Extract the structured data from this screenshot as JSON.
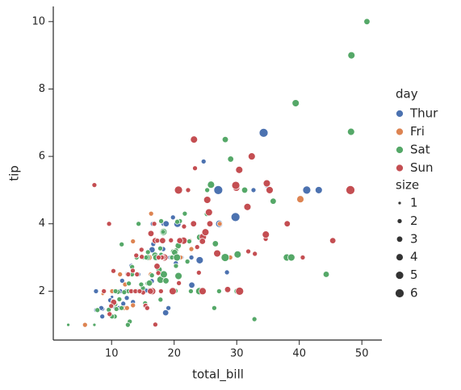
{
  "chart_data": {
    "type": "scatter",
    "x_label": "total_bill",
    "y_label": "tip",
    "legend_title": "day",
    "xlim": [
      0.68,
      53.2
    ],
    "ylim": [
      0.55,
      10.45
    ],
    "xticks": [
      10,
      20,
      30,
      40,
      50
    ],
    "yticks": [
      2,
      4,
      6,
      8,
      10
    ],
    "legend_position": "right",
    "series": [
      {
        "name": "Thur",
        "color": "#4c72b0",
        "x": [
          27.2,
          22.76,
          17.29,
          19.44,
          16.66,
          10.07,
          32.68,
          15.98,
          34.83,
          13.03,
          18.28,
          24.71,
          21.16,
          10.65,
          12.43,
          24.08,
          11.69,
          13.42,
          14.26,
          15.95,
          12.48,
          29.8,
          8.52,
          14.52,
          11.38,
          22.82,
          19.08,
          20.27,
          11.17,
          12.26,
          18.26,
          8.51,
          10.33,
          14.15,
          16.0,
          13.16,
          17.47,
          34.3,
          41.19,
          27.05,
          16.43,
          8.35,
          18.64,
          11.87,
          9.78,
          7.51,
          19.81,
          28.44,
          15.48,
          16.58,
          7.56,
          10.34,
          43.11,
          13.0,
          13.51,
          18.71,
          12.74,
          13.0,
          16.4,
          20.53,
          16.47,
          18.78
        ],
        "values": [
          4,
          3,
          2.71,
          3,
          3.4,
          1.83,
          5,
          2.03,
          5.17,
          2,
          4,
          5.85,
          3,
          1.5,
          1.8,
          2.92,
          2.31,
          1.68,
          2.5,
          2,
          2.52,
          4.2,
          1.48,
          2,
          2,
          2.18,
          1.5,
          2.83,
          1.5,
          2,
          3.25,
          1.25,
          2,
          2,
          2,
          2.75,
          3.5,
          6.7,
          5,
          5,
          2.3,
          1.5,
          1.36,
          1.63,
          1.73,
          2,
          4.19,
          2.56,
          2.02,
          4,
          1.44,
          2,
          5,
          2,
          2,
          4,
          2.01,
          2,
          2.5,
          4,
          3.23,
          3
        ],
        "sizes": [
          4,
          2,
          2,
          2,
          2,
          1,
          2,
          2,
          4,
          2,
          2,
          2,
          2,
          2,
          2,
          4,
          2,
          2,
          2,
          2,
          2,
          6,
          2,
          2,
          2,
          3,
          2,
          2,
          2,
          2,
          2,
          2,
          2,
          2,
          2,
          2,
          2,
          6,
          5,
          6,
          2,
          2,
          3,
          2,
          2,
          2,
          2,
          2,
          2,
          2,
          2,
          2,
          4,
          2,
          2,
          3,
          2,
          2,
          2,
          4,
          3,
          2
        ]
      },
      {
        "name": "Fri",
        "color": "#dd8452",
        "x": [
          28.97,
          22.49,
          5.75,
          16.32,
          22.75,
          40.17,
          27.28,
          12.03,
          21.01,
          12.46,
          11.35,
          15.38,
          12.16,
          13.42,
          8.58,
          15.98,
          13.42,
          16.27,
          10.09
        ],
        "values": [
          3,
          3.5,
          1,
          4.3,
          3.25,
          4.73,
          4,
          1.5,
          3,
          1.5,
          2.5,
          3,
          2.2,
          3.48,
          1.92,
          3,
          1.58,
          2.5,
          2
        ],
        "sizes": [
          2,
          2,
          2,
          2,
          2,
          4,
          2,
          2,
          2,
          2,
          2,
          2,
          2,
          2,
          1,
          3,
          2,
          2,
          2
        ]
      },
      {
        "name": "Sat",
        "color": "#55a868",
        "x": [
          20.65,
          17.92,
          20.29,
          15.77,
          39.42,
          19.82,
          17.81,
          13.37,
          12.69,
          21.7,
          19.65,
          9.55,
          18.35,
          15.06,
          20.69,
          17.78,
          24.06,
          16.31,
          16.93,
          18.69,
          31.27,
          16.04,
          38.01,
          26.41,
          11.24,
          48.27,
          20.29,
          13.81,
          11.02,
          18.29,
          17.59,
          20.08,
          16.45,
          3.07,
          20.23,
          15.01,
          12.02,
          17.07,
          26.86,
          25.28,
          14.73,
          10.51,
          17.92,
          44.3,
          22.42,
          20.92,
          15.36,
          20.49,
          25.21,
          18.24,
          14.31,
          14.0,
          7.25,
          10.59,
          10.63,
          50.81,
          15.81,
          26.59,
          38.73,
          24.27,
          12.76,
          30.06,
          25.89,
          48.33,
          13.27,
          28.17,
          12.9,
          28.15,
          11.59,
          7.74,
          30.14,
          20.45,
          13.28,
          22.12,
          24.01,
          15.69,
          11.61,
          10.77,
          15.53,
          10.07,
          12.6,
          32.83,
          35.83,
          29.03,
          27.18,
          22.67,
          17.82
        ],
        "values": [
          3.35,
          4.08,
          2.75,
          2.23,
          7.58,
          3.18,
          2.34,
          2,
          2,
          4.3,
          3,
          1.45,
          2.5,
          3,
          2.45,
          3.27,
          3.6,
          2,
          3.07,
          2.31,
          5,
          2.24,
          3,
          1.5,
          1.76,
          6.73,
          3.21,
          2,
          1.98,
          3.76,
          2.64,
          3.15,
          2.47,
          1,
          2.01,
          2.09,
          1.97,
          3,
          3.14,
          5,
          2.2,
          1.25,
          3.08,
          2.5,
          3.48,
          4.08,
          1.64,
          4.06,
          4.29,
          3.76,
          4,
          3,
          1,
          1.61,
          2,
          10,
          3.16,
          3.41,
          3,
          2.03,
          2.23,
          2,
          5.16,
          9,
          2.5,
          6.5,
          1.1,
          3,
          1.5,
          1.44,
          3.09,
          3,
          2.72,
          2.88,
          2,
          3,
          3.39,
          1.47,
          3,
          1.25,
          1,
          1.17,
          4.67,
          5.92,
          2,
          2,
          1.75
        ],
        "sizes": [
          3,
          2,
          2,
          2,
          4,
          2,
          4,
          2,
          2,
          2,
          2,
          2,
          4,
          2,
          4,
          2,
          3,
          3,
          3,
          3,
          3,
          3,
          4,
          2,
          2,
          4,
          2,
          2,
          2,
          4,
          3,
          3,
          2,
          1,
          2,
          2,
          2,
          3,
          2,
          2,
          2,
          2,
          2,
          3,
          2,
          2,
          2,
          2,
          2,
          2,
          2,
          2,
          1,
          2,
          2,
          3,
          2,
          3,
          4,
          2,
          2,
          3,
          4,
          4,
          2,
          3,
          2,
          5,
          2,
          2,
          4,
          4,
          2,
          2,
          4,
          3,
          2,
          2,
          2,
          2,
          2,
          2,
          3,
          3,
          2,
          2,
          2
        ]
      },
      {
        "name": "Sun",
        "color": "#c44e52",
        "x": [
          16.99,
          10.34,
          21.01,
          23.68,
          24.59,
          25.29,
          8.77,
          26.88,
          15.04,
          14.78,
          10.27,
          35.26,
          15.42,
          18.43,
          14.83,
          21.58,
          10.33,
          16.29,
          16.97,
          17.46,
          13.94,
          9.68,
          30.4,
          18.29,
          22.23,
          32.4,
          28.55,
          18.04,
          12.54,
          10.29,
          34.81,
          9.94,
          25.56,
          19.49,
          38.07,
          23.95,
          25.71,
          17.31,
          29.93,
          14.07,
          13.13,
          17.26,
          24.55,
          19.77,
          29.85,
          48.17,
          25,
          13.39,
          16.49,
          21.5,
          12.66,
          16.21,
          13.81,
          17.51,
          24.52,
          20.76,
          31.71,
          7.25,
          31.85,
          16.82,
          32.9,
          17.89,
          14.48,
          9.6,
          34.63,
          34.65,
          23.33,
          45.35,
          23.17,
          40.55,
          20.69,
          20.9,
          30.46,
          18.15,
          23.1,
          15.69
        ],
        "values": [
          1.01,
          1.66,
          3.5,
          3.31,
          3.61,
          4.71,
          2,
          3.12,
          1.96,
          3.23,
          1.71,
          5,
          1.57,
          3,
          3.02,
          3.92,
          1.67,
          3.71,
          3.5,
          2.54,
          3.06,
          1.32,
          5.6,
          3,
          5,
          6,
          2.05,
          3,
          2.5,
          2.6,
          5.2,
          1.56,
          4.34,
          3.51,
          4,
          2.55,
          4,
          3.5,
          5.07,
          2.5,
          2,
          2.74,
          2,
          2,
          5.14,
          5,
          3.75,
          2.61,
          2,
          3.5,
          2.5,
          2,
          2,
          3,
          3.48,
          2.24,
          4.5,
          5.15,
          3.18,
          4,
          3.11,
          2,
          2,
          4,
          3.55,
          3.68,
          5.65,
          3.5,
          6.5,
          3,
          5,
          3.5,
          2,
          3.5,
          4,
          1.5
        ],
        "sizes": [
          2,
          3,
          3,
          2,
          4,
          4,
          2,
          4,
          2,
          2,
          2,
          4,
          2,
          4,
          2,
          2,
          3,
          3,
          3,
          2,
          2,
          2,
          4,
          2,
          2,
          4,
          3,
          2,
          2,
          2,
          4,
          2,
          4,
          2,
          3,
          2,
          3,
          2,
          4,
          2,
          2,
          3,
          4,
          4,
          5,
          6,
          4,
          2,
          4,
          4,
          2,
          3,
          2,
          2,
          3,
          2,
          4,
          2,
          2,
          2,
          2,
          2,
          2,
          2,
          2,
          4,
          2,
          3,
          4,
          2,
          5,
          3,
          5,
          3,
          3,
          2
        ]
      }
    ],
    "size_legend": {
      "title": "size",
      "values": [
        1,
        2,
        3,
        4,
        5,
        6
      ]
    }
  }
}
